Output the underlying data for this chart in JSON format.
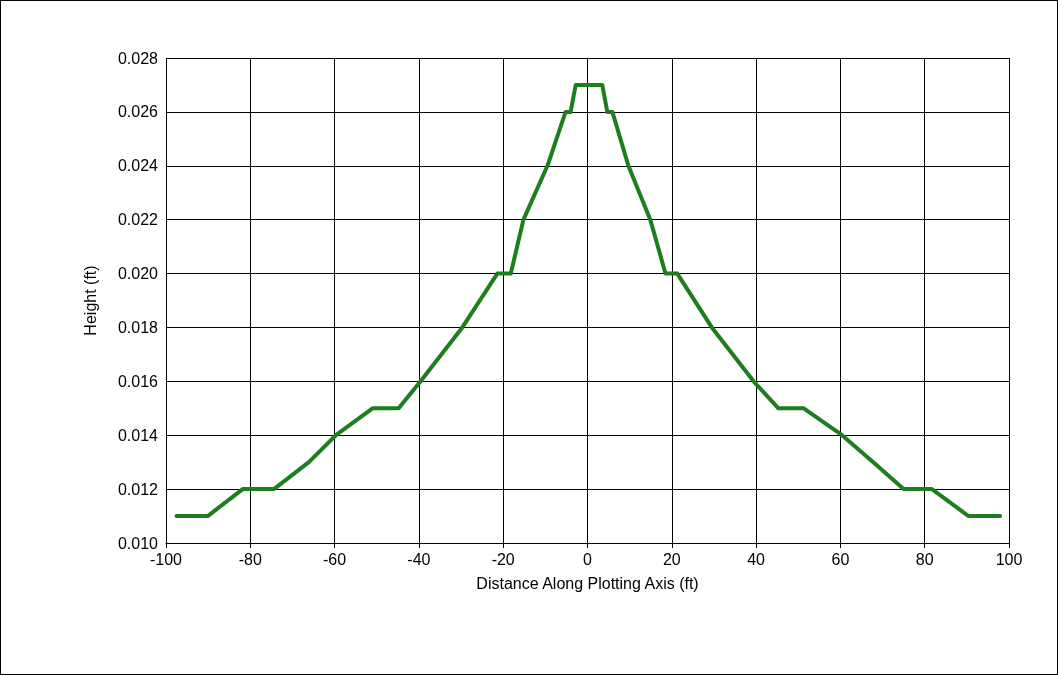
{
  "chart_data": {
    "type": "line",
    "xlabel": "Distance Along Plotting Axis (ft)",
    "ylabel": "Height (ft)",
    "x": [
      -97.5,
      -90.1,
      -81.8,
      -74.4,
      -66.1,
      -59.7,
      -51,
      -44.8,
      -39.6,
      -29.7,
      -21.4,
      -18.2,
      -15.2,
      -9.5,
      -5.2,
      -4,
      -2.8,
      3.5,
      4.7,
      5.9,
      9.7,
      14.9,
      18.5,
      21.3,
      29.5,
      39.4,
      45.3,
      51.3,
      60.4,
      67.8,
      75,
      81.7,
      90.4,
      97.9
    ],
    "series": [
      {
        "color": "#1e7d1e",
        "values": [
          0.011,
          0.011,
          0.012,
          0.012,
          0.013,
          0.014,
          0.015,
          0.015,
          0.016,
          0.018,
          0.02,
          0.02,
          0.022,
          0.024,
          0.026,
          0.026,
          0.027,
          0.027,
          0.026,
          0.026,
          0.024,
          0.022,
          0.02,
          0.02,
          0.018,
          0.016,
          0.015,
          0.015,
          0.014,
          0.013,
          0.012,
          0.012,
          0.011,
          0.011
        ]
      }
    ],
    "xlim": [
      -100,
      100
    ],
    "xticks": [
      -100,
      -80,
      -60,
      -40,
      -20,
      0,
      20,
      40,
      60,
      80,
      100
    ],
    "ylim": [
      0.01,
      0.028
    ],
    "yticks": [
      {
        "value": 0.01,
        "label": "0.010"
      },
      {
        "value": 0.012,
        "label": "0.012"
      },
      {
        "value": 0.014,
        "label": "0.014"
      },
      {
        "value": 0.016,
        "label": "0.016"
      },
      {
        "value": 0.018,
        "label": "0.018"
      },
      {
        "value": 0.02,
        "label": "0.020"
      },
      {
        "value": 0.022,
        "label": "0.022"
      },
      {
        "value": 0.024,
        "label": "0.024"
      },
      {
        "value": 0.026,
        "label": "0.026"
      },
      {
        "value": 0.028,
        "label": "0.028"
      }
    ],
    "grid": true,
    "marker": "none",
    "line_style": "solid"
  }
}
